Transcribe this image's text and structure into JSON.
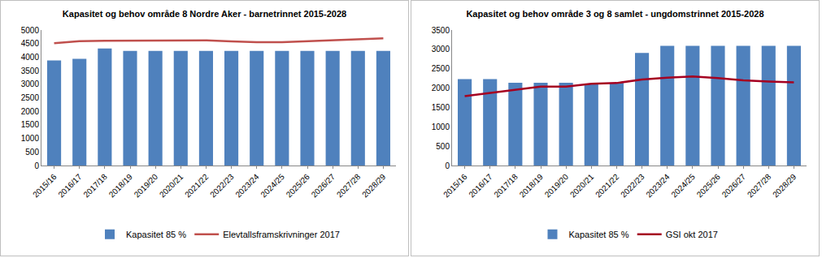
{
  "chart_data": [
    {
      "type": "bar",
      "title": "Kapasitet og behov område 8 Nordre Aker - barnetrinnet 2015-2028",
      "categories": [
        "2015/16",
        "2016/17",
        "2017/18",
        "2018/19",
        "2019/20",
        "2020/21",
        "2021/22",
        "2022/23",
        "2023/24",
        "2024/25",
        "2025/26",
        "2026/27",
        "2027/28",
        "2028/29"
      ],
      "series": [
        {
          "name": "Kapasitet 85 %",
          "type": "bar",
          "color": "#4f81bd",
          "values": [
            3880,
            3940,
            4320,
            4230,
            4230,
            4230,
            4230,
            4230,
            4230,
            4230,
            4230,
            4230,
            4230,
            4230
          ]
        },
        {
          "name": "Elevtallsframskrivninger 2017",
          "type": "line",
          "color": "#c0504d",
          "values": [
            4510,
            4590,
            4600,
            4600,
            4620,
            4600,
            4620,
            4580,
            4550,
            4550,
            4580,
            4620,
            4650,
            4690
          ]
        }
      ],
      "ylim": [
        0,
        5000
      ],
      "yticks": [
        0,
        500,
        1000,
        1500,
        2000,
        2500,
        3000,
        3500,
        4000,
        4500,
        5000
      ],
      "grid": false,
      "legend": "bottom"
    },
    {
      "type": "bar",
      "title": "Kapasitet og behov område 3 og 8 samlet - ungdomstrinnet 2015-2028",
      "categories": [
        "2015/16",
        "2016/17",
        "2017/18",
        "2018/19",
        "2019/20",
        "2020/21",
        "2021/22",
        "2022/23",
        "2023/24",
        "2024/25",
        "2025/26",
        "2026/27",
        "2027/28",
        "2028/29"
      ],
      "series": [
        {
          "name": "Kapasitet 85 %",
          "type": "bar",
          "color": "#4f81bd",
          "values": [
            2230,
            2230,
            2140,
            2140,
            2140,
            2100,
            2130,
            2910,
            3090,
            3090,
            3090,
            3090,
            3090,
            3090
          ]
        },
        {
          "name": "GSI okt 2017",
          "type": "line",
          "color": "#a50021",
          "values": [
            1790,
            1870,
            1960,
            2040,
            2040,
            2110,
            2130,
            2220,
            2270,
            2300,
            2260,
            2200,
            2170,
            2150
          ]
        }
      ],
      "ylim": [
        0,
        3500
      ],
      "yticks": [
        0,
        500,
        1000,
        1500,
        2000,
        2500,
        3000,
        3500
      ],
      "grid": false,
      "legend": "bottom"
    }
  ]
}
